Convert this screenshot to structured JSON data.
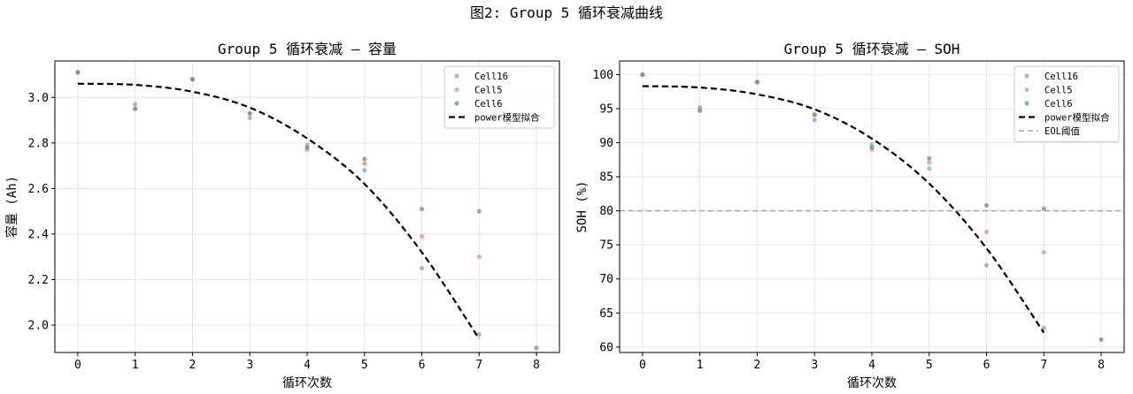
{
  "figure": {
    "title": "图2: Group 5 循环衰减曲线"
  },
  "chart_data": [
    {
      "type": "scatter",
      "title": "Group 5 循环衰减 — 容量",
      "xlabel": "循环次数",
      "ylabel": "容量 (Ah)",
      "xlim": [
        -0.4,
        8.4
      ],
      "ylim": [
        1.88,
        3.16
      ],
      "xticks": [
        0,
        1,
        2,
        3,
        4,
        5,
        6,
        7,
        8
      ],
      "yticks": [
        2.0,
        2.2,
        2.4,
        2.6,
        2.8,
        3.0
      ],
      "ytick_labels": [
        "2.0",
        "2.2",
        "2.4",
        "2.6",
        "2.8",
        "3.0"
      ],
      "grid": true,
      "legend_position": "top-right",
      "series": [
        {
          "name": "Cell16",
          "kind": "scatter",
          "color": "#7fa7d0",
          "x": [
            0,
            1,
            2,
            3,
            4,
            5,
            6,
            7
          ],
          "y": [
            3.11,
            2.97,
            3.08,
            2.91,
            2.79,
            2.68,
            2.25,
            1.96
          ]
        },
        {
          "name": "Cell5",
          "kind": "scatter",
          "color": "#f08b7e",
          "x": [
            0,
            1,
            2,
            3,
            4,
            5,
            6,
            7
          ],
          "y": [
            3.11,
            2.95,
            3.08,
            2.93,
            2.77,
            2.71,
            2.39,
            2.3
          ]
        },
        {
          "name": "Cell6",
          "kind": "scatter",
          "color": "#5e9e7c",
          "x": [
            0,
            1,
            2,
            3,
            4,
            5,
            6,
            7,
            8
          ],
          "y": [
            3.11,
            2.95,
            3.08,
            2.93,
            2.78,
            2.73,
            2.51,
            2.5,
            1.9
          ]
        },
        {
          "name": "power模型拟合",
          "kind": "line",
          "color": "#000000",
          "dashed": true,
          "x": [
            0,
            1,
            2,
            3,
            4,
            5,
            6,
            7
          ],
          "y": [
            3.06,
            3.055,
            3.025,
            2.955,
            2.82,
            2.62,
            2.32,
            1.94
          ]
        }
      ]
    },
    {
      "type": "scatter",
      "title": "Group 5 循环衰减 — SOH",
      "xlabel": "循环次数",
      "ylabel": "SOH (%)",
      "xlim": [
        -0.4,
        8.4
      ],
      "ylim": [
        59.2,
        102.0
      ],
      "xticks": [
        0,
        1,
        2,
        3,
        4,
        5,
        6,
        7,
        8
      ],
      "yticks": [
        60,
        65,
        70,
        75,
        80,
        85,
        90,
        95,
        100
      ],
      "ytick_labels": [
        "60",
        "65",
        "70",
        "75",
        "80",
        "85",
        "90",
        "95",
        "100"
      ],
      "grid": true,
      "legend_position": "top-right",
      "series": [
        {
          "name": "Cell16",
          "kind": "scatter",
          "color": "#7fa7d0",
          "x": [
            0,
            1,
            2,
            3,
            4,
            5,
            6,
            7
          ],
          "y": [
            100,
            95.2,
            98.9,
            93.3,
            89.7,
            86.2,
            72.0,
            62.8
          ]
        },
        {
          "name": "Cell5",
          "kind": "scatter",
          "color": "#f08b7e",
          "x": [
            0,
            1,
            2,
            3,
            4,
            5,
            6,
            7
          ],
          "y": [
            100,
            94.9,
            98.9,
            94.1,
            89.0,
            87.1,
            76.9,
            73.9
          ]
        },
        {
          "name": "Cell6",
          "kind": "scatter",
          "color": "#5e9e7c",
          "x": [
            0,
            1,
            2,
            3,
            4,
            5,
            6,
            7,
            8
          ],
          "y": [
            100,
            94.7,
            98.9,
            94.1,
            89.3,
            87.7,
            80.8,
            80.3,
            61.1
          ]
        },
        {
          "name": "power模型拟合",
          "kind": "line",
          "color": "#000000",
          "dashed": true,
          "x": [
            0,
            1,
            2,
            3,
            4,
            5,
            6,
            7
          ],
          "y": [
            98.3,
            98.1,
            97.1,
            94.9,
            90.6,
            84.0,
            74.5,
            62.1
          ]
        },
        {
          "name": "EOL阈值",
          "kind": "hline",
          "color": "#a6a6a6",
          "dashed": true,
          "y": 80
        }
      ]
    }
  ]
}
